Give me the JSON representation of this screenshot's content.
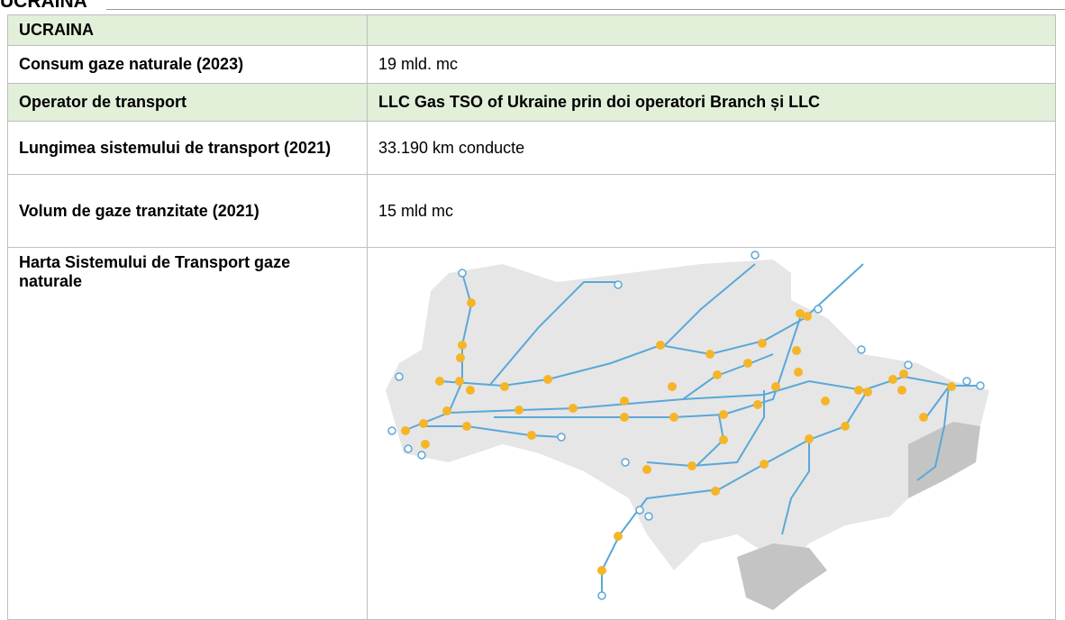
{
  "heading": "UCRAINA",
  "table": {
    "rows": [
      [
        "UCRAINA"
      ],
      [
        "Consum gaze naturale (2023)",
        "19 mld. mc"
      ],
      [
        "Operator de transport",
        "LLC Gas TSO of Ukraine prin doi operatori Branch și LLC"
      ],
      [
        "Lungimea sistemului de transport (2021)",
        "33.190 km conducte"
      ],
      [
        "Volum de gaze tranzitate (2021)",
        "15 mld mc"
      ],
      [
        "Harta Sistemului de Transport gaze naturale"
      ]
    ]
  }
}
